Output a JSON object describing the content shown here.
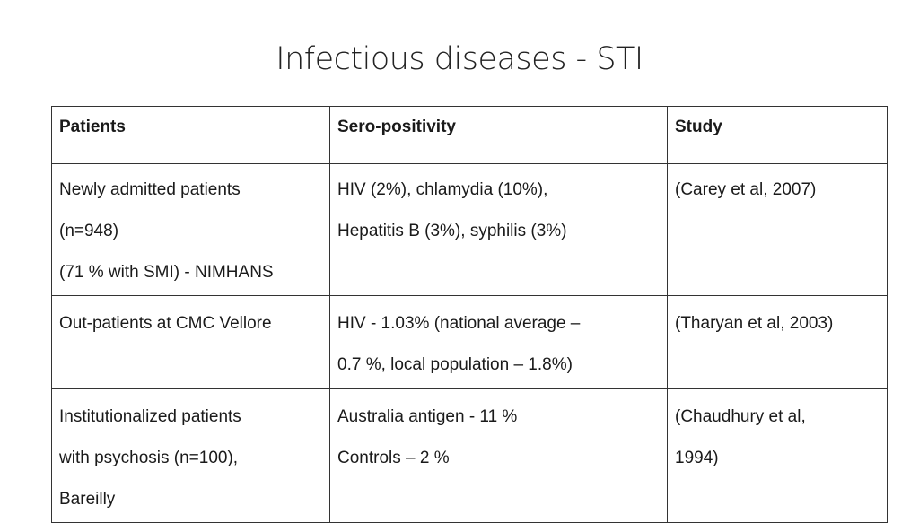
{
  "slide": {
    "title": "Infectious diseases - STI"
  },
  "table": {
    "headers": [
      "Patients",
      "Sero-positivity",
      "Study"
    ],
    "rows": [
      {
        "patients": [
          "Newly admitted patients",
          "(n=948)",
          "(71 % with SMI) - NIMHANS"
        ],
        "sero": [
          "HIV (2%), chlamydia (10%),",
          "Hepatitis B (3%), syphilis (3%)"
        ],
        "study": [
          "(Carey et al, 2007)"
        ]
      },
      {
        "patients": [
          "Out-patients at CMC Vellore"
        ],
        "sero": [
          "HIV - 1.03% (national average –",
          "0.7 %, local population – 1.8%)"
        ],
        "study": [
          "(Tharyan et al, 2003)"
        ]
      },
      {
        "patients": [
          "Institutionalized patients",
          "with psychosis  (n=100),",
          "Bareilly"
        ],
        "sero": [
          "Australia antigen - 11 %",
          "Controls – 2 %"
        ],
        "study": [
          "(Chaudhury et al,",
          "1994)"
        ]
      }
    ]
  }
}
